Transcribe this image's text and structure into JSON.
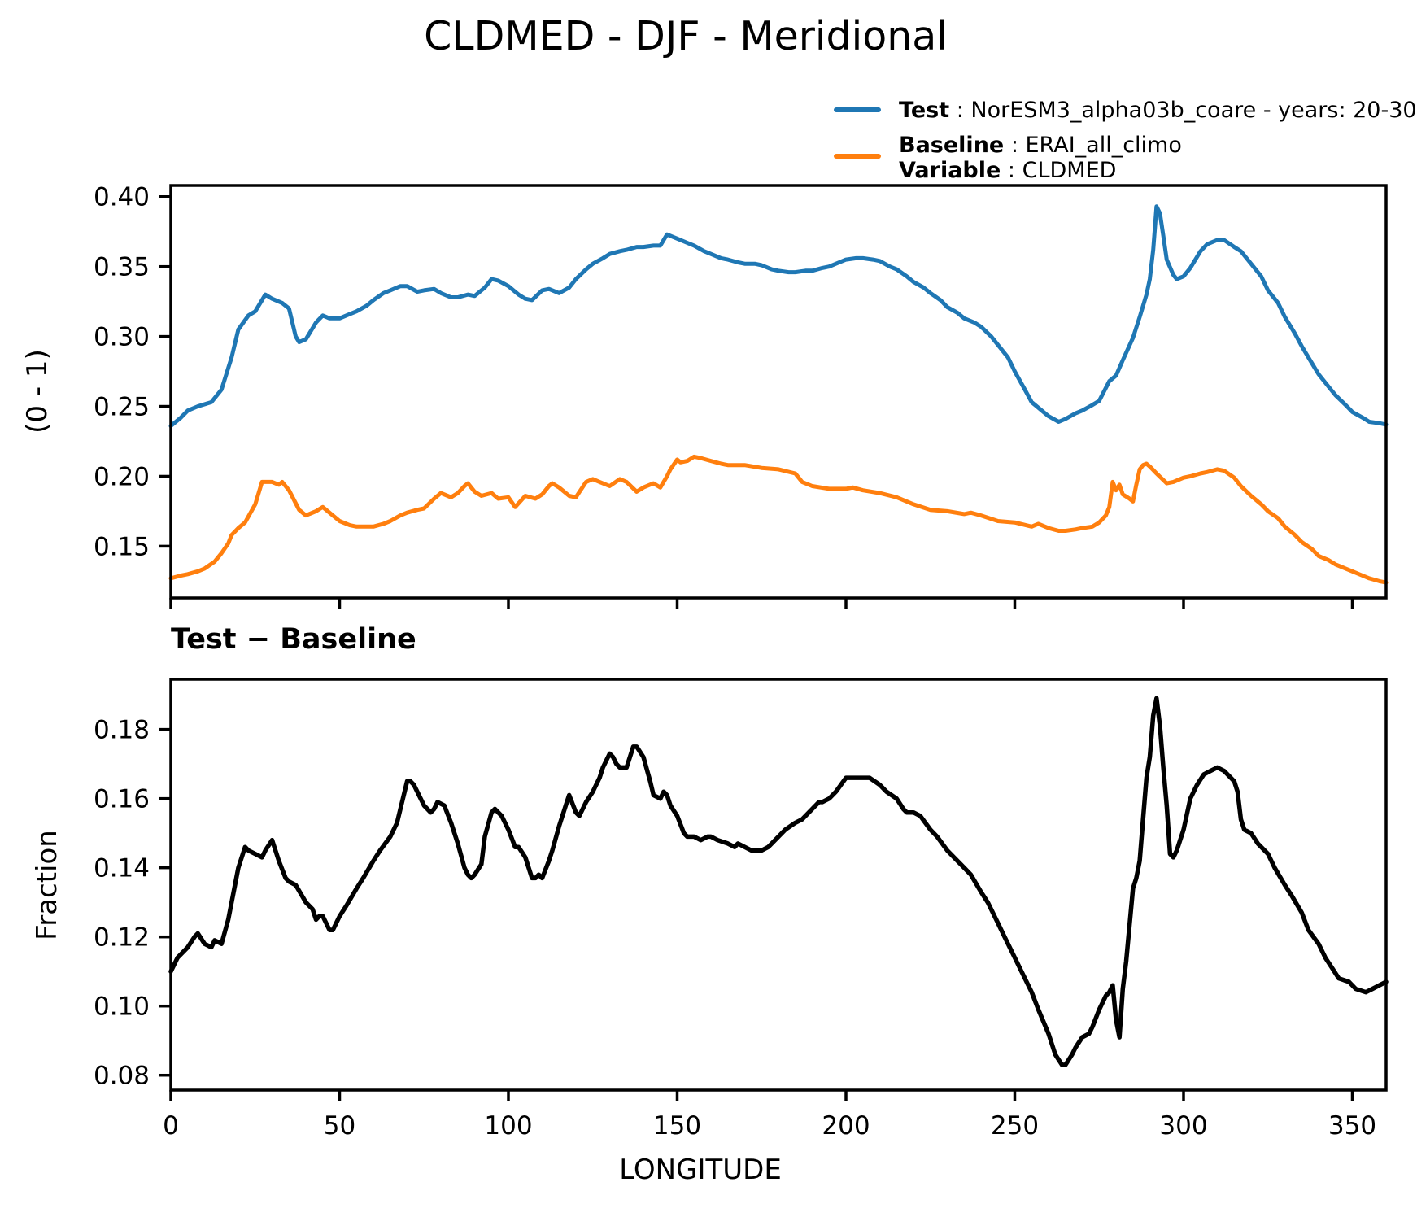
{
  "title": "CLDMED - DJF - Meridional",
  "legend": {
    "test_label": "Test",
    "test_value": " : NorESM3_alpha03b_coare - years: 20-30",
    "baseline_label": "Baseline",
    "baseline_value": " : ERAI_all_climo",
    "variable_label": "Variable",
    "variable_value": " : CLDMED",
    "test_color": "#1f77b4",
    "baseline_color": "#ff7f0e"
  },
  "chart_data": [
    {
      "type": "line",
      "panel": "top",
      "ylabel": "(0 - 1)",
      "xlabel": "",
      "title": "",
      "grid": false,
      "legend_position": "outside-top-right",
      "xlim": [
        0,
        360
      ],
      "ylim": [
        0.113,
        0.408
      ],
      "yticks": [
        0.15,
        0.2,
        0.25,
        0.3,
        0.35,
        0.4
      ],
      "xticks": [
        0,
        50,
        100,
        150,
        200,
        250,
        300,
        350
      ],
      "show_xtick_labels": false,
      "series": [
        {
          "name": "Test : NorESM3_alpha03b_coare - years: 20-30",
          "color": "#1f77b4",
          "x": [
            0,
            3,
            5,
            8,
            12,
            15,
            18,
            20,
            23,
            25,
            27,
            28,
            30,
            33,
            35,
            37,
            38,
            40,
            43,
            45,
            47,
            50,
            53,
            55,
            58,
            60,
            63,
            65,
            68,
            70,
            73,
            75,
            78,
            80,
            83,
            85,
            88,
            90,
            93,
            95,
            97,
            100,
            103,
            105,
            107,
            110,
            112,
            115,
            118,
            120,
            123,
            125,
            128,
            130,
            133,
            135,
            138,
            140,
            143,
            145,
            147,
            148,
            150,
            153,
            155,
            158,
            160,
            163,
            165,
            168,
            170,
            173,
            175,
            178,
            180,
            183,
            185,
            188,
            190,
            193,
            195,
            198,
            200,
            203,
            205,
            208,
            210,
            213,
            215,
            218,
            220,
            223,
            225,
            228,
            230,
            233,
            235,
            238,
            240,
            243,
            245,
            248,
            250,
            253,
            255,
            258,
            260,
            263,
            265,
            268,
            270,
            273,
            275,
            278,
            280,
            282,
            285,
            287,
            289,
            290,
            291,
            292,
            293,
            294,
            295,
            297,
            298,
            300,
            302,
            305,
            307,
            310,
            312,
            315,
            317,
            320,
            323,
            325,
            328,
            330,
            333,
            335,
            338,
            340,
            343,
            345,
            348,
            350,
            353,
            355,
            358,
            360
          ],
          "y": [
            0.236,
            0.242,
            0.247,
            0.25,
            0.253,
            0.262,
            0.285,
            0.305,
            0.315,
            0.318,
            0.326,
            0.33,
            0.327,
            0.324,
            0.32,
            0.3,
            0.296,
            0.298,
            0.31,
            0.315,
            0.313,
            0.313,
            0.316,
            0.318,
            0.322,
            0.326,
            0.331,
            0.333,
            0.336,
            0.336,
            0.332,
            0.333,
            0.334,
            0.331,
            0.328,
            0.328,
            0.33,
            0.329,
            0.335,
            0.341,
            0.34,
            0.336,
            0.33,
            0.327,
            0.326,
            0.333,
            0.334,
            0.331,
            0.335,
            0.341,
            0.348,
            0.352,
            0.356,
            0.359,
            0.361,
            0.362,
            0.364,
            0.364,
            0.365,
            0.365,
            0.373,
            0.372,
            0.37,
            0.367,
            0.365,
            0.361,
            0.359,
            0.356,
            0.355,
            0.353,
            0.352,
            0.352,
            0.351,
            0.348,
            0.347,
            0.346,
            0.346,
            0.347,
            0.347,
            0.349,
            0.35,
            0.353,
            0.355,
            0.356,
            0.356,
            0.355,
            0.354,
            0.35,
            0.348,
            0.343,
            0.339,
            0.335,
            0.331,
            0.326,
            0.321,
            0.317,
            0.313,
            0.31,
            0.307,
            0.3,
            0.294,
            0.285,
            0.275,
            0.262,
            0.253,
            0.247,
            0.243,
            0.239,
            0.241,
            0.245,
            0.247,
            0.251,
            0.254,
            0.268,
            0.272,
            0.283,
            0.299,
            0.314,
            0.33,
            0.341,
            0.362,
            0.393,
            0.388,
            0.372,
            0.355,
            0.344,
            0.341,
            0.343,
            0.349,
            0.361,
            0.366,
            0.369,
            0.369,
            0.364,
            0.361,
            0.352,
            0.343,
            0.333,
            0.324,
            0.314,
            0.302,
            0.293,
            0.281,
            0.273,
            0.264,
            0.258,
            0.251,
            0.246,
            0.242,
            0.239,
            0.238,
            0.237
          ]
        },
        {
          "name": "Baseline : ERAI_all_climo",
          "color": "#ff7f0e",
          "x": [
            0,
            3,
            5,
            8,
            10,
            13,
            15,
            17,
            18,
            20,
            22,
            25,
            27,
            30,
            32,
            33,
            35,
            38,
            40,
            43,
            45,
            47,
            50,
            53,
            55,
            58,
            60,
            63,
            65,
            68,
            70,
            73,
            75,
            78,
            80,
            82,
            83,
            85,
            87,
            88,
            90,
            92,
            95,
            97,
            100,
            102,
            105,
            108,
            110,
            112,
            113,
            115,
            118,
            120,
            123,
            125,
            127,
            130,
            133,
            135,
            138,
            140,
            143,
            145,
            147,
            148,
            150,
            151,
            153,
            155,
            157,
            160,
            163,
            165,
            170,
            175,
            180,
            185,
            187,
            190,
            195,
            200,
            202,
            205,
            210,
            215,
            220,
            225,
            230,
            235,
            237,
            240,
            245,
            250,
            255,
            257,
            260,
            263,
            265,
            268,
            270,
            273,
            275,
            277,
            278,
            279,
            280,
            281,
            282,
            284,
            285,
            286,
            287,
            288,
            289,
            290,
            292,
            295,
            297,
            300,
            302,
            305,
            307,
            310,
            312,
            315,
            317,
            320,
            323,
            325,
            328,
            330,
            333,
            335,
            338,
            340,
            343,
            345,
            348,
            350,
            353,
            355,
            358,
            360
          ],
          "y": [
            0.127,
            0.129,
            0.13,
            0.132,
            0.134,
            0.139,
            0.145,
            0.152,
            0.158,
            0.163,
            0.167,
            0.18,
            0.196,
            0.196,
            0.194,
            0.196,
            0.19,
            0.176,
            0.172,
            0.175,
            0.178,
            0.174,
            0.168,
            0.165,
            0.164,
            0.164,
            0.164,
            0.166,
            0.168,
            0.172,
            0.174,
            0.176,
            0.177,
            0.184,
            0.188,
            0.186,
            0.185,
            0.188,
            0.193,
            0.195,
            0.189,
            0.186,
            0.188,
            0.184,
            0.185,
            0.178,
            0.186,
            0.184,
            0.187,
            0.193,
            0.195,
            0.192,
            0.186,
            0.185,
            0.196,
            0.198,
            0.196,
            0.193,
            0.198,
            0.196,
            0.189,
            0.192,
            0.195,
            0.192,
            0.2,
            0.205,
            0.212,
            0.21,
            0.211,
            0.214,
            0.213,
            0.211,
            0.209,
            0.208,
            0.208,
            0.206,
            0.205,
            0.202,
            0.196,
            0.193,
            0.191,
            0.191,
            0.192,
            0.19,
            0.188,
            0.185,
            0.18,
            0.176,
            0.175,
            0.173,
            0.174,
            0.172,
            0.168,
            0.167,
            0.164,
            0.166,
            0.163,
            0.161,
            0.161,
            0.162,
            0.163,
            0.164,
            0.167,
            0.172,
            0.178,
            0.196,
            0.19,
            0.194,
            0.187,
            0.184,
            0.182,
            0.194,
            0.205,
            0.208,
            0.209,
            0.207,
            0.202,
            0.195,
            0.196,
            0.199,
            0.2,
            0.202,
            0.203,
            0.205,
            0.204,
            0.199,
            0.193,
            0.186,
            0.18,
            0.175,
            0.17,
            0.164,
            0.158,
            0.153,
            0.148,
            0.143,
            0.14,
            0.137,
            0.134,
            0.132,
            0.129,
            0.127,
            0.125,
            0.124
          ]
        }
      ]
    },
    {
      "type": "line",
      "panel": "bottom",
      "title": "Test − Baseline",
      "ylabel": "Fraction",
      "xlabel": "LONGITUDE",
      "grid": false,
      "xlim": [
        0,
        360
      ],
      "ylim": [
        0.0757,
        0.1945
      ],
      "yticks": [
        0.08,
        0.1,
        0.12,
        0.14,
        0.16,
        0.18
      ],
      "xticks": [
        0,
        50,
        100,
        150,
        200,
        250,
        300,
        350
      ],
      "show_xtick_labels": true,
      "series": [
        {
          "name": "Test − Baseline",
          "color": "#000000",
          "x": [
            0,
            2,
            5,
            7,
            8,
            10,
            12,
            13,
            15,
            17,
            20,
            22,
            23,
            25,
            27,
            28,
            30,
            32,
            34,
            35,
            37,
            40,
            42,
            43,
            44,
            45,
            47,
            48,
            50,
            52,
            55,
            57,
            60,
            62,
            65,
            67,
            70,
            71,
            72,
            75,
            77,
            78,
            79,
            81,
            83,
            85,
            87,
            88,
            89,
            90,
            92,
            93,
            95,
            96,
            98,
            100,
            102,
            103,
            105,
            107,
            108,
            109,
            110,
            112,
            113,
            115,
            117,
            118,
            120,
            121,
            123,
            125,
            127,
            128,
            130,
            131,
            132,
            133,
            135,
            137,
            138,
            140,
            142,
            143,
            145,
            146,
            147,
            148,
            150,
            152,
            153,
            155,
            157,
            159,
            160,
            162,
            165,
            167,
            168,
            170,
            172,
            174,
            175,
            177,
            180,
            182,
            185,
            187,
            190,
            192,
            193,
            195,
            197,
            200,
            202,
            205,
            207,
            210,
            212,
            215,
            217,
            218,
            220,
            222,
            225,
            227,
            230,
            232,
            235,
            237,
            240,
            242,
            245,
            247,
            250,
            252,
            255,
            257,
            260,
            262,
            264,
            265,
            267,
            268,
            270,
            272,
            273,
            275,
            277,
            278,
            279,
            280,
            281,
            282,
            283,
            285,
            286,
            287,
            288,
            289,
            290,
            291,
            292,
            293,
            294,
            295,
            296,
            297,
            298,
            300,
            302,
            304,
            306,
            308,
            310,
            312,
            314,
            315,
            316,
            317,
            318,
            320,
            322,
            325,
            327,
            330,
            332,
            335,
            337,
            340,
            342,
            344,
            346,
            349,
            351,
            354,
            356,
            358,
            360
          ],
          "y": [
            0.11,
            0.114,
            0.117,
            0.12,
            0.121,
            0.118,
            0.117,
            0.119,
            0.118,
            0.125,
            0.14,
            0.146,
            0.145,
            0.144,
            0.143,
            0.145,
            0.148,
            0.142,
            0.137,
            0.136,
            0.135,
            0.13,
            0.128,
            0.125,
            0.126,
            0.126,
            0.122,
            0.122,
            0.126,
            0.129,
            0.134,
            0.137,
            0.142,
            0.145,
            0.149,
            0.153,
            0.165,
            0.165,
            0.164,
            0.158,
            0.156,
            0.157,
            0.159,
            0.158,
            0.153,
            0.147,
            0.14,
            0.138,
            0.137,
            0.138,
            0.141,
            0.149,
            0.156,
            0.157,
            0.155,
            0.151,
            0.146,
            0.146,
            0.143,
            0.137,
            0.137,
            0.138,
            0.137,
            0.142,
            0.145,
            0.152,
            0.158,
            0.161,
            0.156,
            0.155,
            0.159,
            0.162,
            0.166,
            0.169,
            0.173,
            0.172,
            0.17,
            0.169,
            0.169,
            0.175,
            0.175,
            0.172,
            0.165,
            0.161,
            0.16,
            0.162,
            0.161,
            0.158,
            0.155,
            0.15,
            0.149,
            0.149,
            0.148,
            0.149,
            0.149,
            0.148,
            0.147,
            0.146,
            0.147,
            0.146,
            0.145,
            0.145,
            0.145,
            0.146,
            0.149,
            0.151,
            0.153,
            0.154,
            0.157,
            0.159,
            0.159,
            0.16,
            0.162,
            0.166,
            0.166,
            0.166,
            0.166,
            0.164,
            0.162,
            0.16,
            0.157,
            0.156,
            0.156,
            0.155,
            0.151,
            0.149,
            0.145,
            0.143,
            0.14,
            0.138,
            0.133,
            0.13,
            0.124,
            0.12,
            0.114,
            0.11,
            0.104,
            0.099,
            0.092,
            0.086,
            0.083,
            0.083,
            0.086,
            0.088,
            0.091,
            0.092,
            0.094,
            0.099,
            0.103,
            0.104,
            0.106,
            0.096,
            0.091,
            0.105,
            0.113,
            0.134,
            0.137,
            0.142,
            0.154,
            0.166,
            0.172,
            0.184,
            0.189,
            0.181,
            0.169,
            0.158,
            0.144,
            0.143,
            0.145,
            0.151,
            0.16,
            0.164,
            0.167,
            0.168,
            0.169,
            0.168,
            0.166,
            0.165,
            0.162,
            0.154,
            0.151,
            0.15,
            0.147,
            0.144,
            0.14,
            0.135,
            0.132,
            0.127,
            0.122,
            0.118,
            0.114,
            0.111,
            0.108,
            0.107,
            0.105,
            0.104,
            0.105,
            0.106,
            0.107
          ]
        }
      ]
    }
  ]
}
